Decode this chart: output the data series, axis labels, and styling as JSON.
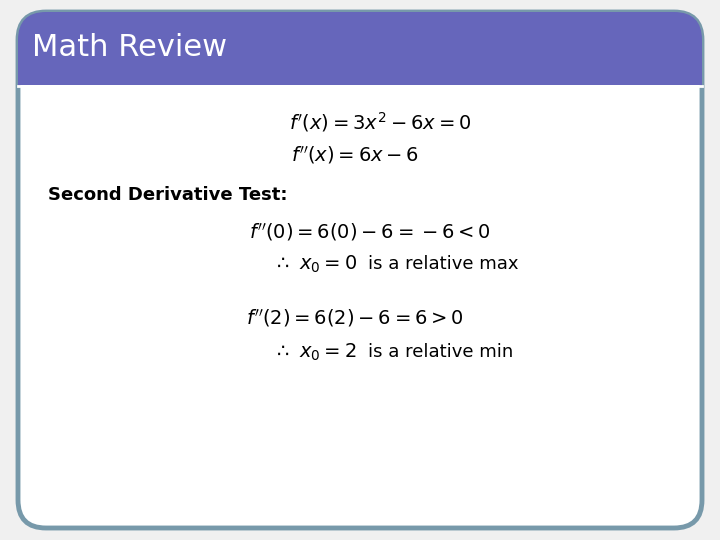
{
  "title": "Math Review",
  "title_bg_color": "#6666bb",
  "title_text_color": "#ffffff",
  "title_fontsize": 22,
  "body_bg_color": "#f0f0f0",
  "card_bg_color": "#ffffff",
  "border_color": "#7799aa",
  "section_label": "Second Derivative Test:",
  "math_fontsize": 14,
  "label_fontsize": 13,
  "annotation_fontsize": 13,
  "fig_width": 7.2,
  "fig_height": 5.4,
  "dpi": 100
}
